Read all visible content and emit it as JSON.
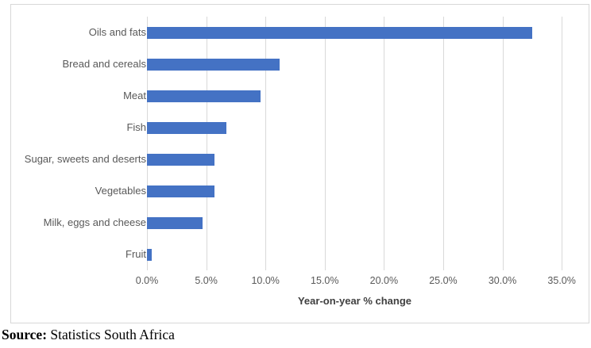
{
  "chart_data": {
    "type": "bar",
    "orientation": "horizontal",
    "categories": [
      "Oils and fats",
      "Bread and cereals",
      "Meat",
      "Fish",
      "Sugar, sweets and deserts",
      "Vegetables",
      "Milk, eggs and cheese",
      "Fruit"
    ],
    "values": [
      32.5,
      11.2,
      9.6,
      6.7,
      5.7,
      5.7,
      4.7,
      0.4
    ],
    "value_unit": "percent",
    "title": "",
    "xlabel": "Year-on-year % change",
    "ylabel": "",
    "xticks": [
      0,
      5,
      10,
      15,
      20,
      25,
      30,
      35
    ],
    "xtick_labels": [
      "0.0%",
      "5.0%",
      "10.0%",
      "15.0%",
      "20.0%",
      "25.0%",
      "30.0%",
      "35.0%"
    ],
    "xlim": [
      0,
      36.8
    ],
    "grid": true,
    "legend": false,
    "bar_color": "#4472c4"
  },
  "colors": {
    "bar": "#4472c4",
    "gridline": "#d9d9d9",
    "tick_text": "#595959",
    "axis_title_text": "#404040",
    "chart_border": "#d7d7d7"
  },
  "source": {
    "label": "Source:",
    "text": " Statistics South Africa"
  }
}
